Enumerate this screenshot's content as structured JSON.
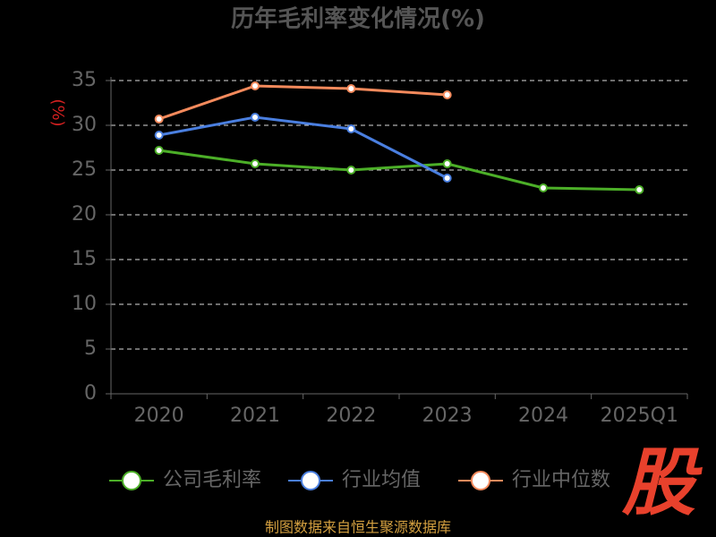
{
  "chart_data": {
    "type": "line",
    "title": "历年毛利率变化情况(%)",
    "y_label": "(%)",
    "categories": [
      "2020",
      "2021",
      "2022",
      "2023",
      "2024",
      "2025Q1"
    ],
    "series": [
      {
        "name": "公司毛利率",
        "color": "#4caf28",
        "values": [
          27.2,
          25.7,
          25.0,
          25.7,
          23.0,
          22.8
        ]
      },
      {
        "name": "行业均值",
        "color": "#4a7fe0",
        "values": [
          28.9,
          30.9,
          29.6,
          24.1,
          null,
          null
        ]
      },
      {
        "name": "行业中位数",
        "color": "#f48a5c",
        "values": [
          30.7,
          34.4,
          34.1,
          33.4,
          null,
          null
        ]
      }
    ],
    "ylim": [
      0,
      35
    ],
    "yticks": [
      0,
      5,
      10,
      15,
      20,
      25,
      30,
      35
    ],
    "grid": true,
    "legend": "bottom",
    "source": "制图数据来自恒生聚源数据库",
    "logo": "股"
  }
}
